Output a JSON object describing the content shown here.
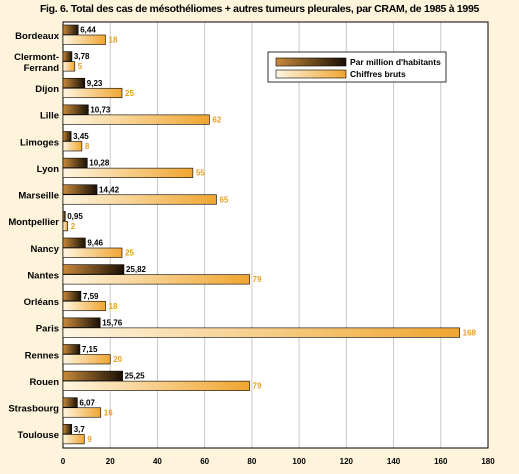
{
  "figure": {
    "label": "Fig. 6.",
    "title_pre": "Total des cas de mésothéliomes + autres tumeurs pleurales, par ",
    "title_strong": "CRAM",
    "title_post": ", de 1985 à 1995"
  },
  "colors": {
    "page_background": "#fef4dc",
    "plot_background": "#ffffff",
    "series_dark": "#5a3a0e",
    "series_light": "#f0a530",
    "light_value_text": "#e8a020"
  },
  "chart_data": {
    "type": "bar",
    "orientation": "horizontal",
    "categories": [
      "Bordeaux",
      "Clermont-Ferrand",
      "Dijon",
      "Lille",
      "Limoges",
      "Lyon",
      "Marseille",
      "Montpellier",
      "Nancy",
      "Nantes",
      "Orléans",
      "Paris",
      "Rennes",
      "Rouen",
      "Strasbourg",
      "Toulouse"
    ],
    "category_lines": [
      [
        "Bordeaux"
      ],
      [
        "Clermont-",
        "Ferrand"
      ],
      [
        "Dijon"
      ],
      [
        "Lille"
      ],
      [
        "Limoges"
      ],
      [
        "Lyon"
      ],
      [
        "Marseille"
      ],
      [
        "Montpellier"
      ],
      [
        "Nancy"
      ],
      [
        "Nantes"
      ],
      [
        "Orléans"
      ],
      [
        "Paris"
      ],
      [
        "Rennes"
      ],
      [
        "Rouen"
      ],
      [
        "Strasbourg"
      ],
      [
        "Toulouse"
      ]
    ],
    "series": [
      {
        "name": "Par million d'habitants",
        "values": [
          6.44,
          3.78,
          9.23,
          10.73,
          3.45,
          10.28,
          14.42,
          0.95,
          9.46,
          25.82,
          7.59,
          15.76,
          7.15,
          25.25,
          6.07,
          3.7
        ],
        "labels": [
          "6,44",
          "3,78",
          "9,23",
          "10,73",
          "3,45",
          "10,28",
          "14,42",
          "0,95",
          "9,46",
          "25,82",
          "7,59",
          "15,76",
          "7,15",
          "25,25",
          "6,07",
          "3,7"
        ]
      },
      {
        "name": "Chiffres bruts",
        "values": [
          18,
          5,
          25,
          62,
          8,
          55,
          65,
          2,
          25,
          79,
          18,
          168,
          20,
          79,
          16,
          9
        ],
        "labels": [
          "18",
          "5",
          "25",
          "62",
          "8",
          "55",
          "65",
          "2",
          "25",
          "79",
          "18",
          "168",
          "20",
          "79",
          "16",
          "9"
        ]
      }
    ],
    "xlim": [
      0,
      180
    ],
    "xticks": [
      0,
      20,
      40,
      60,
      80,
      100,
      120,
      140,
      160,
      180
    ],
    "grid": "vertical",
    "legend_position": "top-right"
  }
}
